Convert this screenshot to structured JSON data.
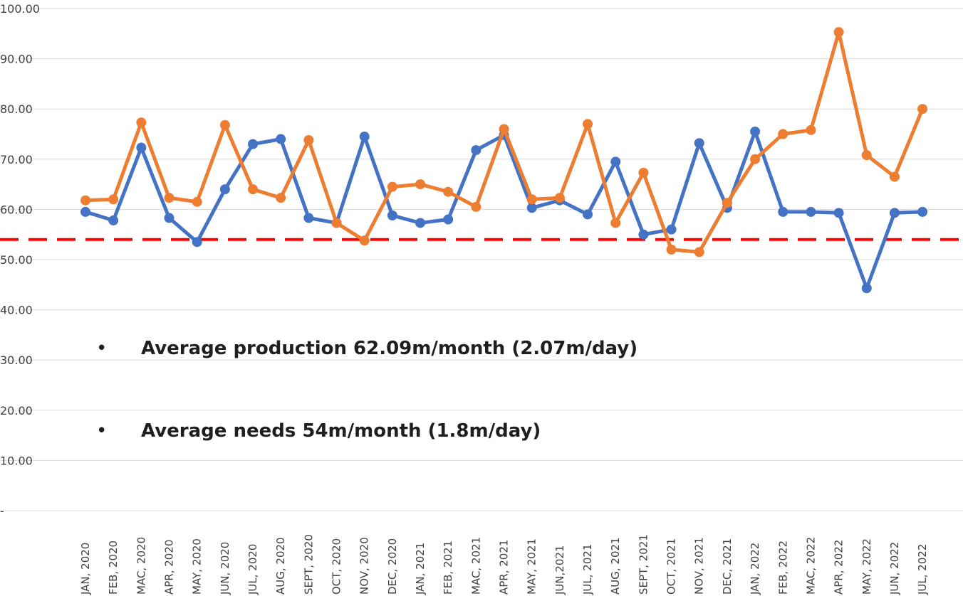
{
  "chart_data": {
    "type": "line",
    "title": "",
    "xlabel": "",
    "ylabel": "",
    "ylim": [
      0,
      100
    ],
    "y_ticks": [
      "-",
      "10.00",
      "20.00",
      "30.00",
      "40.00",
      "50.00",
      "60.00",
      "70.00",
      "80.00",
      "90.00",
      "100.00"
    ],
    "grid": "horizontal",
    "categories": [
      "JAN, 2020",
      "FEB, 2020",
      "MAC, 2020",
      "APR, 2020",
      "MAY, 2020",
      "JUN, 2020",
      "JUL, 2020",
      "AUG, 2020",
      "SEPT, 2020",
      "OCT, 2020",
      "NOV, 2020",
      "DEC, 2020",
      "JAN, 2021",
      "FEB, 2021",
      "MAC, 2021",
      "APR, 2021",
      "MAY, 2021",
      "JUN,2021",
      "JUL, 2021",
      "AUG, 2021",
      "SEPT, 2021",
      "OCT, 2021",
      "NOV, 2021",
      "DEC, 2021",
      "JAN, 2022",
      "FEB, 2022",
      "MAC, 2022",
      "APR, 2022",
      "MAY, 2022",
      "JUN, 2022",
      "JUL, 2022"
    ],
    "series": [
      {
        "color": "#4472C4",
        "values": [
          59.5,
          57.8,
          72.3,
          58.3,
          53.5,
          64.0,
          73.0,
          74.0,
          58.3,
          57.3,
          74.5,
          58.8,
          57.3,
          58.0,
          71.8,
          74.8,
          60.3,
          61.8,
          59.0,
          69.5,
          55.0,
          56.0,
          73.2,
          60.3,
          75.5,
          59.5,
          59.5,
          59.3,
          44.3,
          59.3,
          59.5
        ]
      },
      {
        "color": "#ED7D31",
        "values": [
          61.8,
          62.0,
          77.3,
          62.3,
          61.5,
          76.8,
          64.0,
          62.3,
          73.8,
          57.3,
          53.8,
          64.5,
          65.0,
          63.5,
          60.5,
          76.0,
          62.0,
          62.3,
          77.0,
          57.3,
          67.3,
          52.0,
          51.5,
          61.3,
          70.0,
          75.0,
          75.8,
          95.3,
          70.8,
          66.5,
          80.0
        ]
      }
    ],
    "reference_line": {
      "value": 54,
      "color": "#FF0000",
      "style": "dashed"
    },
    "annotations": [
      "Average production 62.09m/month (2.07m/day)",
      "Average needs 54m/month (1.8m/day)"
    ],
    "bullet_symbol": "•"
  }
}
